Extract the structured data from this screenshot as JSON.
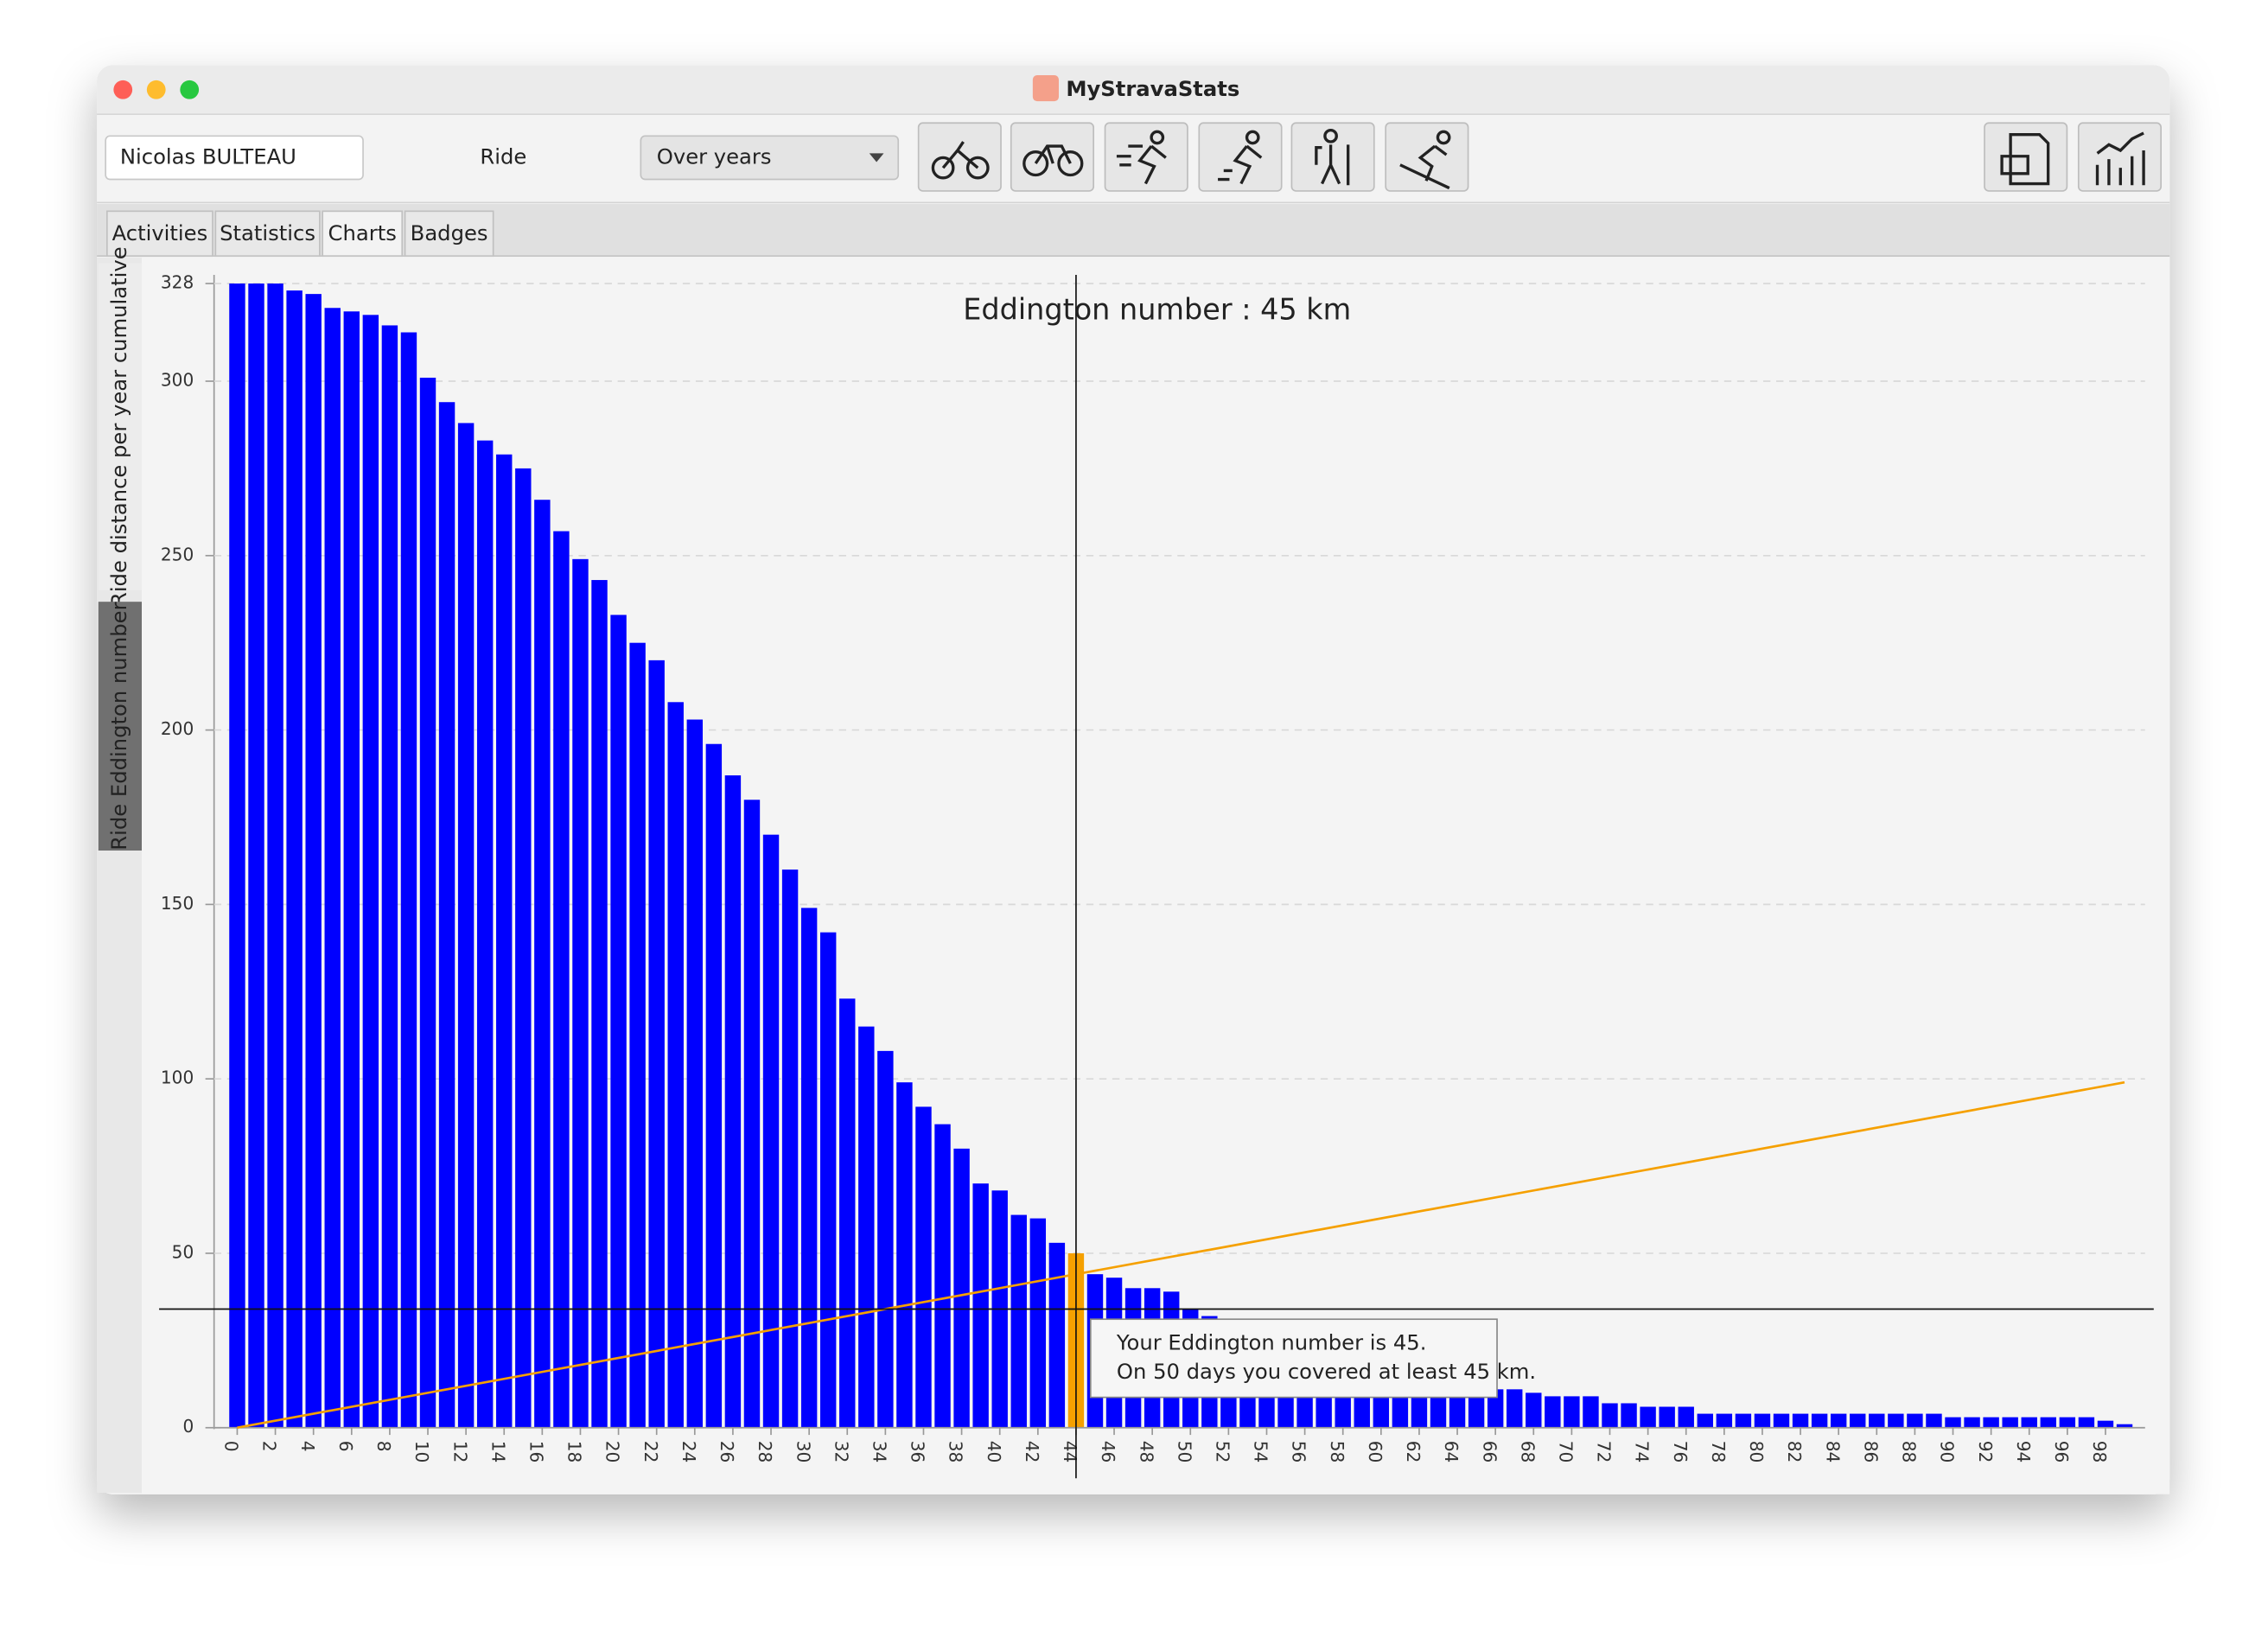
{
  "window": {
    "title": "MyStravaStats"
  },
  "toolbar": {
    "athlete": "Nicolas BULTEAU",
    "activity_type": "Ride",
    "period": "Over years"
  },
  "tabs": [
    "Activities",
    "Statistics",
    "Charts",
    "Badges"
  ],
  "side_tabs": [
    "Ride distance per year cumulative",
    "Ride Eddington number"
  ],
  "chart_data": {
    "type": "bar",
    "title": "Eddington number : 45 km",
    "categories": [
      0,
      null,
      2,
      null,
      4,
      null,
      6,
      null,
      8,
      null,
      10,
      null,
      12,
      null,
      14,
      null,
      16,
      null,
      18,
      null,
      20,
      null,
      22,
      null,
      24,
      null,
      26,
      null,
      28,
      null,
      30,
      null,
      32,
      null,
      34,
      null,
      36,
      null,
      38,
      null,
      40,
      null,
      42,
      null,
      44,
      null,
      46,
      null,
      48,
      null,
      50,
      null,
      52,
      null,
      54,
      null,
      56,
      null,
      58,
      null,
      60,
      null,
      62,
      null,
      64,
      null,
      66,
      null,
      68,
      null,
      70,
      null,
      72,
      null,
      74,
      null,
      76,
      null,
      78,
      null,
      80,
      null,
      82,
      null,
      84,
      null,
      86,
      null,
      88,
      null,
      90,
      null,
      92,
      null,
      94,
      null,
      96,
      null,
      98,
      null
    ],
    "values": [
      328,
      328,
      328,
      326,
      325,
      321,
      320,
      319,
      316,
      314,
      301,
      294,
      288,
      283,
      279,
      275,
      266,
      257,
      249,
      243,
      233,
      225,
      220,
      208,
      203,
      196,
      187,
      180,
      170,
      160,
      149,
      142,
      123,
      115,
      108,
      99,
      92,
      87,
      80,
      70,
      68,
      61,
      60,
      53,
      50,
      44,
      43,
      40,
      40,
      39,
      34,
      32,
      30,
      28,
      26,
      24,
      22,
      21,
      20,
      19,
      18,
      17,
      16,
      15,
      14,
      12,
      11,
      11,
      10,
      9,
      9,
      9,
      7,
      7,
      6,
      6,
      6,
      4,
      4,
      4,
      4,
      4,
      4,
      4,
      4,
      4,
      4,
      4,
      4,
      4,
      3,
      3,
      3,
      3,
      3,
      3,
      3,
      3,
      2,
      1
    ],
    "color": "#0000ff",
    "highlight_index": 44,
    "highlight_color": "#f5a000",
    "diagonal": {
      "x": [
        0,
        99
      ],
      "y": [
        0,
        99
      ],
      "color": "#f5a000"
    },
    "crosshair": {
      "x": 44,
      "y": 34
    },
    "ylim": [
      0,
      328
    ],
    "yticks": [
      0,
      50,
      100,
      150,
      200,
      250,
      300,
      328
    ],
    "grid": true,
    "tooltip": [
      "Your Eddington number is 45.",
      "On 50 days you covered at least 45 km."
    ]
  }
}
